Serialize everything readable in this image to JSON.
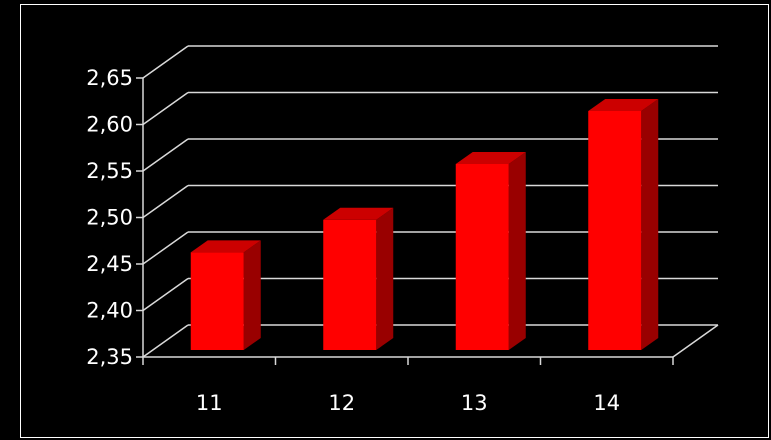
{
  "chart_data": {
    "type": "bar",
    "title": "",
    "xlabel": "",
    "ylabel": "",
    "categories": [
      "11",
      "12",
      "13",
      "14"
    ],
    "values": [
      2.455,
      2.49,
      2.55,
      2.607
    ],
    "ylim": [
      2.35,
      2.65
    ],
    "ytick_labels": [
      "2,35",
      "2,40",
      "2,45",
      "2,50",
      "2,55",
      "2,60",
      "2,65"
    ],
    "grid": true,
    "legend": "none",
    "style": "3d-column",
    "colors": {
      "background": "#000000",
      "bar_front": "#ff0000",
      "bar_top": "#cc0000",
      "bar_side": "#990000",
      "grid": "#d9d9d9",
      "text": "#ffffff"
    }
  }
}
